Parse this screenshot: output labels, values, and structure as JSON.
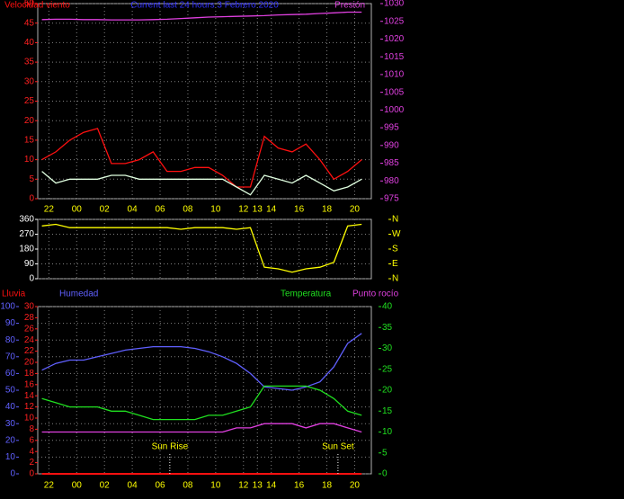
{
  "chart_data": [
    {
      "type": "line",
      "title": "Current last 24 hours 3 Febrero 2020",
      "title_color": "#3030ff",
      "x": [
        21.5,
        22.5,
        23.5,
        24.5,
        25.5,
        26.5,
        27.5,
        28.5,
        29.5,
        30.5,
        31.5,
        32.5,
        33.5,
        34.5,
        35.5,
        36.5,
        37.5,
        38.5,
        39.5,
        40.5,
        41.5,
        42.5,
        43.5,
        44.5
      ],
      "xlim": [
        21.2,
        45.2
      ],
      "xticks": [
        22,
        {
          "value": 24,
          "label": "00"
        },
        {
          "value": 26,
          "label": "02"
        },
        {
          "value": 28,
          "label": "04"
        },
        {
          "value": 30,
          "label": "06"
        },
        {
          "value": 32,
          "label": "08"
        },
        {
          "value": 34,
          "label": "10"
        },
        {
          "value": 36,
          "label": "12"
        },
        {
          "value": 37,
          "label": "13"
        },
        {
          "value": 38,
          "label": "14"
        },
        {
          "value": 40,
          "label": "16"
        },
        {
          "value": 42,
          "label": "18"
        },
        {
          "value": 44,
          "label": "20"
        }
      ],
      "ylim": [
        0,
        50
      ],
      "yticks": [
        0,
        5,
        10,
        15,
        20,
        25,
        30,
        35,
        40,
        45,
        50
      ],
      "y_color": "#ff2020",
      "y2lim": [
        975,
        1030
      ],
      "y2ticks": [
        975,
        980,
        985,
        990,
        995,
        1000,
        1005,
        1010,
        1015,
        1020,
        1025,
        1030
      ],
      "y2_color": "#e040e0",
      "grid": true,
      "series": [
        {
          "name": "Velocidad viento",
          "color": "#ff1010",
          "values": [
            10,
            12,
            15,
            17,
            18,
            9,
            9,
            10,
            12,
            7,
            7,
            8,
            8,
            6,
            3,
            3,
            16,
            13,
            12,
            14,
            10,
            5,
            7,
            10
          ]
        },
        {
          "color": "#e0ffe0",
          "values": [
            7,
            4,
            5,
            5,
            5,
            6,
            6,
            5,
            5,
            5,
            5,
            5,
            5,
            5,
            3,
            1,
            6,
            5,
            4,
            6,
            4,
            2,
            3,
            5
          ]
        },
        {
          "name": "Presión",
          "color": "#e040e0",
          "axis": "y2",
          "values": [
            1025.5,
            1025.6,
            1025.6,
            1025.5,
            1025.5,
            1025.4,
            1025.4,
            1025.4,
            1025.5,
            1025.6,
            1025.8,
            1026,
            1026.2,
            1026.3,
            1026.4,
            1026.5,
            1026.6,
            1026.8,
            1026.9,
            1027,
            1027.2,
            1027.4,
            1027.6,
            1027.6
          ]
        }
      ]
    },
    {
      "type": "line",
      "x": [
        21.5,
        22.5,
        23.5,
        24.5,
        25.5,
        26.5,
        27.5,
        28.5,
        29.5,
        30.5,
        31.5,
        32.5,
        33.5,
        34.5,
        35.5,
        36.5,
        37.5,
        38.5,
        39.5,
        40.5,
        41.5,
        42.5,
        43.5,
        44.5
      ],
      "xlim": [
        21.2,
        45.2
      ],
      "ylim": [
        0,
        360
      ],
      "yticks": [
        0,
        90,
        180,
        270,
        360
      ],
      "y_color": "#ffffff",
      "y2lim": [
        0,
        360
      ],
      "y2ticks": [
        {
          "value": 0,
          "label": "N"
        },
        {
          "value": 90,
          "label": "E"
        },
        {
          "value": 180,
          "label": "S"
        },
        {
          "value": 270,
          "label": "W"
        },
        {
          "value": 360,
          "label": "N"
        }
      ],
      "y2_color": "#ffff00",
      "grid": true,
      "series": [
        {
          "color": "#ffff00",
          "values": [
            320,
            330,
            310,
            310,
            310,
            310,
            310,
            310,
            310,
            310,
            300,
            310,
            310,
            310,
            300,
            310,
            70,
            60,
            40,
            60,
            70,
            100,
            320,
            330
          ]
        }
      ]
    },
    {
      "type": "line",
      "x": [
        21.5,
        22.5,
        23.5,
        24.5,
        25.5,
        26.5,
        27.5,
        28.5,
        29.5,
        30.5,
        31.5,
        32.5,
        33.5,
        34.5,
        35.5,
        36.5,
        37.5,
        38.5,
        39.5,
        40.5,
        41.5,
        42.5,
        43.5,
        44.5
      ],
      "xlim": [
        21.2,
        45.2
      ],
      "xticks": [
        22,
        {
          "value": 24,
          "label": "00"
        },
        {
          "value": 26,
          "label": "02"
        },
        {
          "value": 28,
          "label": "04"
        },
        {
          "value": 30,
          "label": "06"
        },
        {
          "value": 32,
          "label": "08"
        },
        {
          "value": 34,
          "label": "10"
        },
        {
          "value": 36,
          "label": "12"
        },
        {
          "value": 37,
          "label": "13"
        },
        {
          "value": 38,
          "label": "14"
        },
        {
          "value": 40,
          "label": "16"
        },
        {
          "value": 42,
          "label": "18"
        },
        {
          "value": 44,
          "label": "20"
        }
      ],
      "ylim": [
        0,
        100
      ],
      "yticks": [
        0,
        10,
        20,
        30,
        40,
        50,
        60,
        70,
        80,
        90,
        100
      ],
      "y_color": "#6060ff",
      "y3lim": [
        0,
        30
      ],
      "y3ticks": [
        0,
        2,
        4,
        6,
        8,
        10,
        12,
        14,
        16,
        18,
        20,
        22,
        24,
        26,
        28,
        30
      ],
      "y3_color": "#ff2020",
      "y2lim": [
        0,
        40
      ],
      "y2ticks": [
        0,
        5,
        10,
        15,
        20,
        25,
        30,
        35,
        40
      ],
      "y2_color": "#20e020",
      "grid": true,
      "series": [
        {
          "name": "Lluvia",
          "color": "#ff1010",
          "axis": "y3",
          "values": [
            0,
            0,
            0,
            0,
            0,
            0,
            0,
            0,
            0,
            0,
            0,
            0,
            0,
            0,
            0,
            0,
            0,
            0,
            0,
            0,
            0,
            0,
            0,
            0
          ]
        },
        {
          "name": "Humedad",
          "color": "#6060ff",
          "values": [
            62,
            66,
            68,
            68,
            70,
            72,
            74,
            75,
            76,
            76,
            76,
            75,
            73,
            70,
            66,
            60,
            52,
            51,
            50,
            52,
            55,
            64,
            78,
            84
          ]
        },
        {
          "name": "Temperatura",
          "color": "#20e020",
          "axis": "y2",
          "values": [
            18,
            17,
            16,
            16,
            16,
            15,
            15,
            14,
            13,
            13,
            13,
            13,
            14,
            14,
            15,
            16,
            21,
            21,
            21,
            21,
            20,
            18,
            15,
            14
          ]
        },
        {
          "name": "Punto rocío",
          "color": "#e040e0",
          "axis": "y2",
          "values": [
            10,
            10,
            10,
            10,
            10,
            10,
            10,
            10,
            10,
            10,
            10,
            10,
            10,
            10,
            11,
            11,
            12,
            12,
            12,
            11,
            12,
            12,
            11,
            10
          ]
        }
      ],
      "annotations": [
        {
          "x": 30.7,
          "text": "Sun Rise"
        },
        {
          "x": 42.8,
          "text": "Sun Set"
        }
      ]
    }
  ]
}
